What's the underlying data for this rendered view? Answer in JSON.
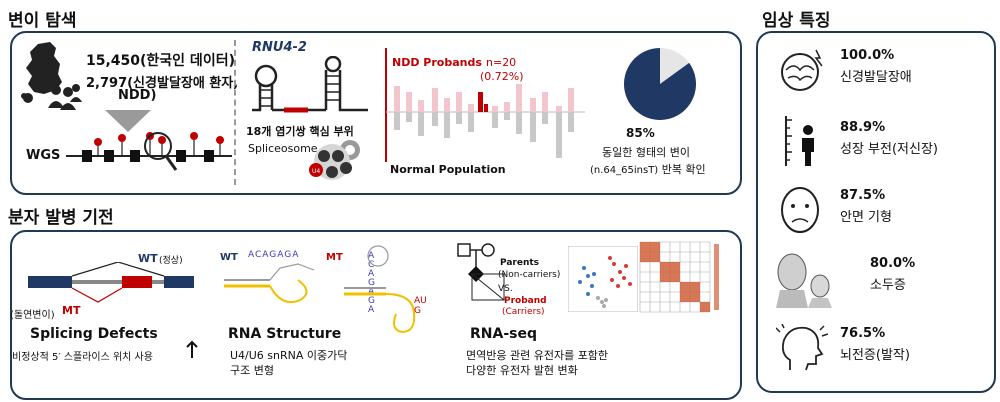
{
  "sections": {
    "variant_search": "변이 탐색",
    "molecular_mechanism": "분자 발병 기전",
    "clinical_features": "임상 특징"
  },
  "variant": {
    "korean_data": "15,450(한국인 데이터)",
    "ndd_line1": "2,797(신경발달장애 환자,",
    "ndd_line2": "NDD)",
    "wgs": "WGS",
    "gene": "RNU4-2",
    "core_site": "18개 염기쌍 핵심 부위",
    "spliceosome": "Spliceosome",
    "ndd_probands": "NDD Probands",
    "n_count": "n=20",
    "n_pct": "(0.72%)",
    "normal_population": "Normal Population",
    "pie_pct": "85%",
    "pie_fraction": 0.85,
    "same_variant": "동일한 형태의 변이",
    "variant_name": "(n.64_65insT)",
    "recurrent": " 반복 확인"
  },
  "mechanism": {
    "wt": "WT",
    "wt_normal": "(정상)",
    "mt": "MT",
    "mutant": "(돌연변이)",
    "splicing_title": "Splicing Defects",
    "splicing_desc": "비정상적 5′ 스플라이스 위치 사용",
    "rna_title": "RNA Structure",
    "rna_desc1": "U4/U6 snRNA 이중가닥",
    "rna_desc2": "구조 변형",
    "wt_seq": "ACAGAGA",
    "mt_seq": "ACAGAGA",
    "mt_loop": "AUG",
    "parents": "Parents",
    "non_carriers": "(Non-carriers)",
    "vs": "VS.",
    "proband": "Proband",
    "carriers": "(Carriers)",
    "seq_title": "RNA-seq",
    "seq_desc1": "면역반응 관련 유전자를 포함한",
    "seq_desc2": "다양한 유전자 발현 변화"
  },
  "clinical": [
    {
      "pct": "100.0%",
      "label": "신경발달장애",
      "icon": "brain-icon"
    },
    {
      "pct": "88.9%",
      "label": "성장 부전(저신장)",
      "icon": "height-icon"
    },
    {
      "pct": "87.5%",
      "label": "안면 기형",
      "icon": "face-icon"
    },
    {
      "pct": "80.0%",
      "label": "소두증",
      "icon": "microcephaly-icon"
    },
    {
      "pct": "76.5%",
      "label": "뇌전증(발작)",
      "icon": "seizure-icon"
    }
  ],
  "colors": {
    "frame": "#1f3a52",
    "red": "#c00000",
    "navy": "#1f3864",
    "pink": "#f2c6cc",
    "gray": "#c8c8c8"
  }
}
